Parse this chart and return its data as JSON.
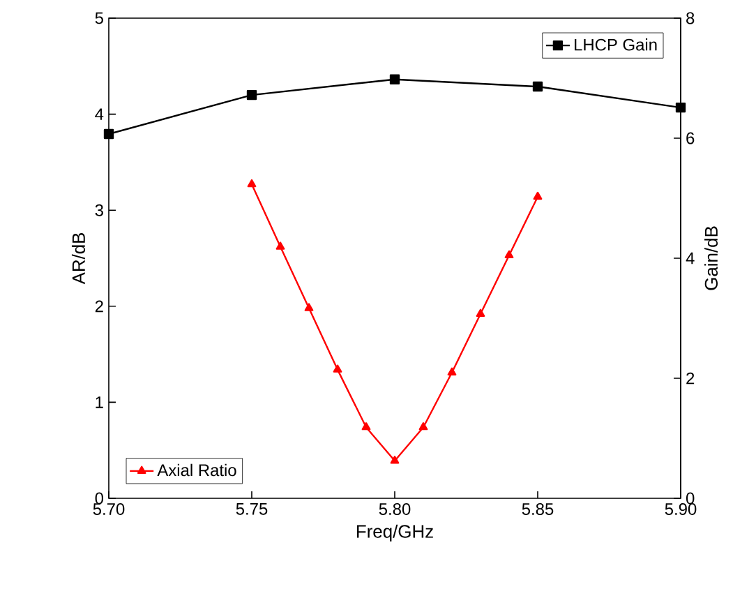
{
  "chart_data": {
    "type": "line",
    "xlabel": "Freq/GHz",
    "ylabel": "AR/dB",
    "y2label": "Gain/dB",
    "xlim": [
      5.7,
      5.9
    ],
    "xticks": [
      {
        "value": 5.7,
        "label": "5.70"
      },
      {
        "value": 5.75,
        "label": "5.75"
      },
      {
        "value": 5.8,
        "label": "5.80"
      },
      {
        "value": 5.85,
        "label": "5.85"
      },
      {
        "value": 5.9,
        "label": "5.90"
      }
    ],
    "ylim": [
      0,
      5
    ],
    "yticks": [
      0,
      1,
      2,
      3,
      4,
      5
    ],
    "y2lim": [
      0,
      8
    ],
    "y2ticks": [
      0,
      2,
      4,
      6,
      8
    ],
    "legend": "top right",
    "series": [
      {
        "name": "LHCP Gain",
        "color": "#000000",
        "axis": "y2",
        "marker": "square",
        "x": [
          5.7,
          5.75,
          5.8,
          5.85,
          5.9
        ],
        "values": [
          6.07,
          6.72,
          6.98,
          6.86,
          6.51
        ]
      },
      {
        "name": "Axial Ratio",
        "color": "#ff0000",
        "axis": "y",
        "marker": "triangle",
        "x": [
          5.75,
          5.76,
          5.77,
          5.78,
          5.79,
          5.8,
          5.81,
          5.82,
          5.83,
          5.84,
          5.85
        ],
        "values": [
          3.27,
          2.62,
          1.98,
          1.34,
          0.74,
          0.39,
          0.74,
          1.31,
          1.92,
          2.53,
          3.14
        ]
      }
    ]
  }
}
